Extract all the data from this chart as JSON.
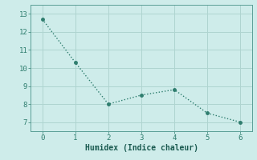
{
  "x": [
    0,
    1,
    2,
    3,
    4,
    5,
    6
  ],
  "y": [
    12.7,
    10.3,
    8.0,
    8.5,
    8.8,
    7.5,
    7.0
  ],
  "xlabel": "Humidex (Indice chaleur)",
  "line_color": "#2e7d6e",
  "marker": "o",
  "marker_size": 2.5,
  "line_width": 1.0,
  "background_color": "#ceecea",
  "grid_color": "#afd4d0",
  "spine_color": "#5a9e96",
  "tick_color": "#2e7d6e",
  "label_color": "#1a5a50",
  "xlim": [
    -0.35,
    6.35
  ],
  "ylim": [
    6.5,
    13.5
  ],
  "yticks": [
    7,
    8,
    9,
    10,
    11,
    12,
    13
  ],
  "xticks": [
    0,
    1,
    2,
    3,
    4,
    5,
    6
  ],
  "tick_fontsize": 6.5,
  "xlabel_fontsize": 7.0
}
